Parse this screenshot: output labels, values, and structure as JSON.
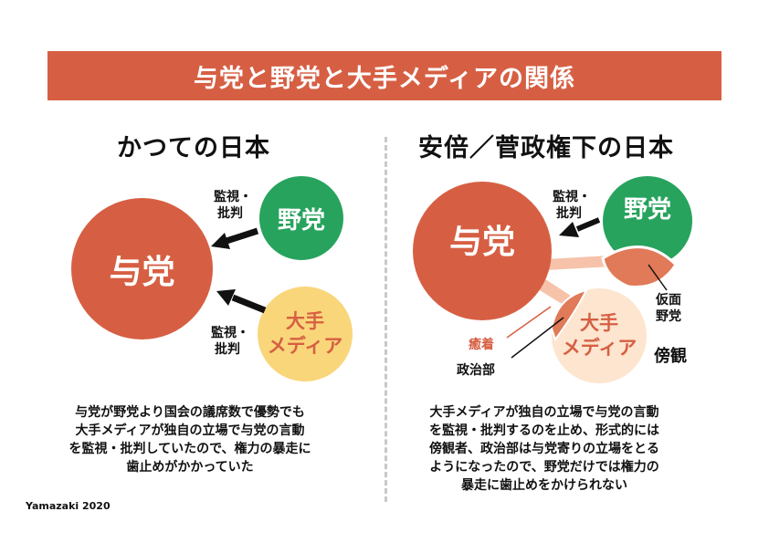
{
  "title": "与党と野党と大手メディアの関係",
  "left": {
    "heading": "かつての日本",
    "ruling_party": "与党",
    "opposition_party": "野党",
    "major_media": [
      "大手",
      "メディア"
    ],
    "arrow_top_label": [
      "監視・",
      "批判"
    ],
    "arrow_bottom_label": [
      "監視・",
      "批判"
    ],
    "description": [
      "与党が野党より国会の議席数で優勢でも",
      "大手メディアが独自の立場で与党の言動",
      "を監視・批判していたので、権力の暴走に",
      "歯止めがかかっていた"
    ]
  },
  "right": {
    "heading": "安倍／菅政権下の日本",
    "ruling_party": "与党",
    "opposition_party": "野党",
    "major_media": [
      "大手",
      "メディア"
    ],
    "arrow_label": [
      "監視・",
      "批判"
    ],
    "mask_label": [
      "仮面",
      "野党"
    ],
    "collusion_label": "癒着",
    "politics_dept_label": "政治部",
    "bystander_label": "傍観",
    "description": [
      "大手メディアが独自の立場で与党の言動",
      "を監視・批判するのを止め、形式的には",
      "傍観者、政治部は与党寄りの立場をとる",
      "ようになったので、野党だけでは権力の",
      "暴走に歯止めをかけられない"
    ]
  },
  "credit": "Yamazaki 2020",
  "colors": {
    "ruling": "#d65f43",
    "opposition": "#27a35d",
    "media": "#f9d67a",
    "media_pale": "#fde5cf",
    "mask": "#e07a58",
    "collusion": "#f6c2a9",
    "arrow": "#111111"
  }
}
